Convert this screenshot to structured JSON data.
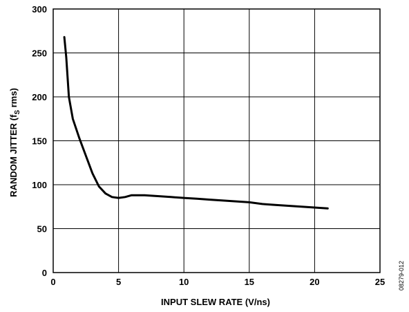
{
  "chart_data": {
    "type": "line",
    "title": "",
    "xlabel": "INPUT SLEW RATE (V/ns)",
    "ylabel": {
      "main": "RANDOM JITTER (f",
      "subscript": "S",
      "suffix": " rms)"
    },
    "xlim": [
      0,
      25
    ],
    "ylim": [
      0,
      300
    ],
    "x_ticks": [
      0,
      5,
      10,
      15,
      20,
      25
    ],
    "y_ticks": [
      0,
      50,
      100,
      150,
      200,
      250,
      300
    ],
    "grid": true,
    "legend": "none",
    "line_color": "#000000",
    "series": [
      {
        "x": [
          0.85,
          1.0,
          1.2,
          1.5,
          2.0,
          2.5,
          3.0,
          3.5,
          4.0,
          4.5,
          5.0,
          5.5,
          6.0,
          6.5,
          7.0,
          8.0,
          9.0,
          10.0,
          11.0,
          12.0,
          13.0,
          14.0,
          15.0,
          16.0,
          17.0,
          18.0,
          19.0,
          20.0,
          21.0
        ],
        "y": [
          268,
          245,
          200,
          175,
          153,
          133,
          113,
          98,
          90,
          86,
          85,
          86,
          88,
          88,
          88,
          87,
          86,
          85,
          84,
          83,
          82,
          81,
          80,
          78,
          77,
          76,
          75,
          74,
          73
        ]
      }
    ]
  },
  "figure_id": "08279-012"
}
